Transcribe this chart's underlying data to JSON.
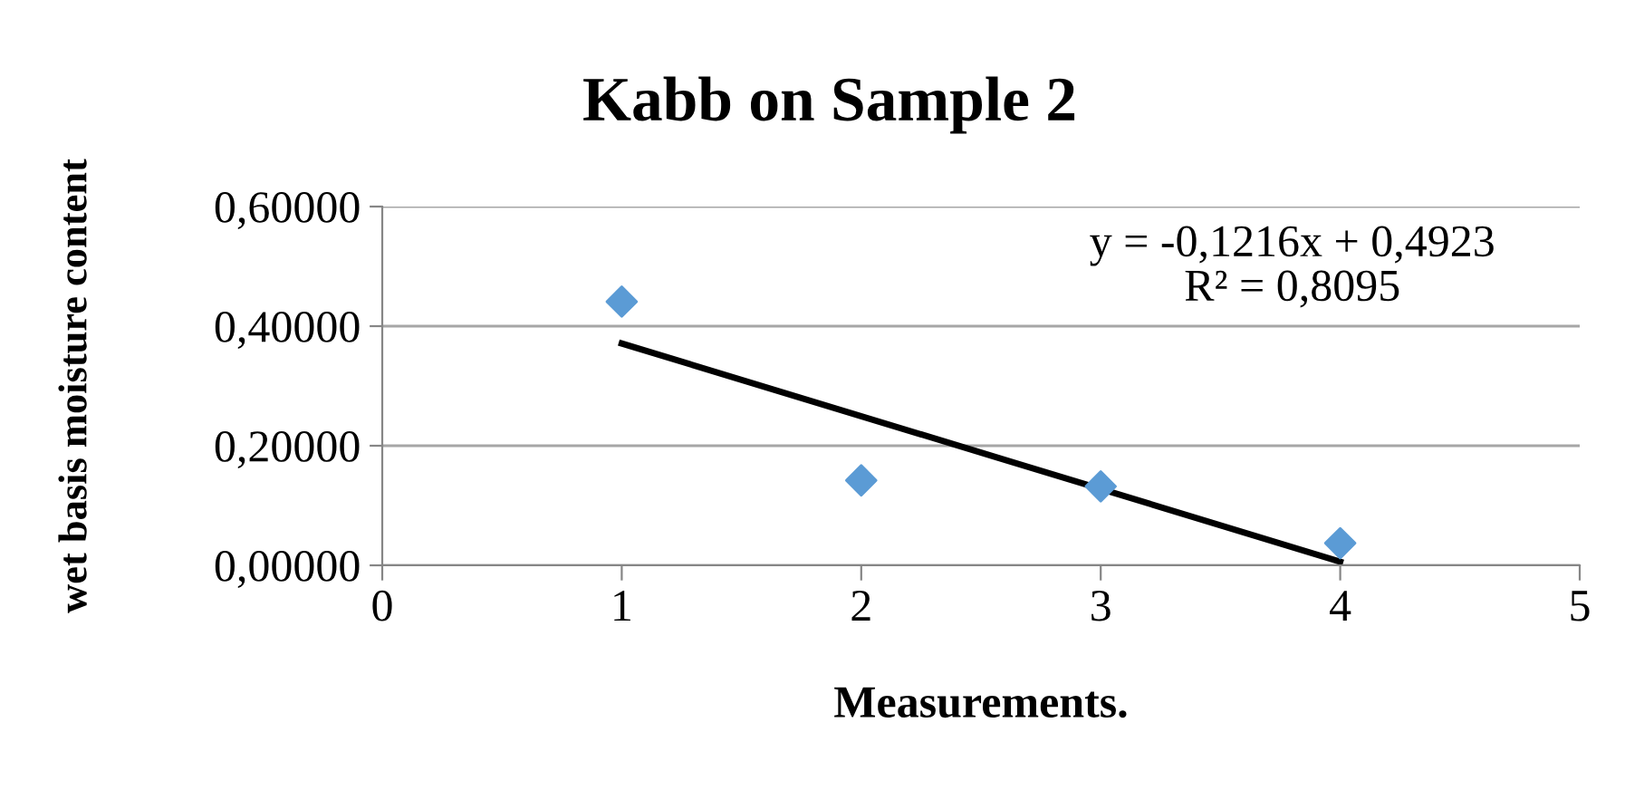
{
  "chart_data": {
    "type": "scatter",
    "title": "Kabb on Sample 2",
    "xlabel": "Measurements.",
    "ylabel": "wet basis moisture content",
    "series": [
      {
        "color": "#5b9bd5",
        "marker": "diamond",
        "x": [
          1,
          2,
          3,
          4
        ],
        "values": [
          0.441,
          0.142,
          0.132,
          0.037
        ]
      },
      {
        "type": "line",
        "color": "#000000",
        "marker": "none",
        "x": [
          1,
          4
        ],
        "values": [
          0.371,
          0.006
        ]
      }
    ],
    "annotations": [
      "y = -0,1216x + 0,4923\nR² = 0,8095"
    ],
    "xlim": [
      0,
      5
    ],
    "xticks": [
      0,
      1,
      2,
      3,
      4,
      5
    ],
    "ylim": [
      0,
      0.6
    ],
    "yticks": [
      {
        "value": 0,
        "label": "0,00000"
      },
      {
        "value": 0.2,
        "label": "0,20000"
      },
      {
        "value": 0.4,
        "label": "0,40000"
      },
      {
        "value": 0.6,
        "label": "0,60000"
      }
    ],
    "grid": "y",
    "legend": false
  }
}
